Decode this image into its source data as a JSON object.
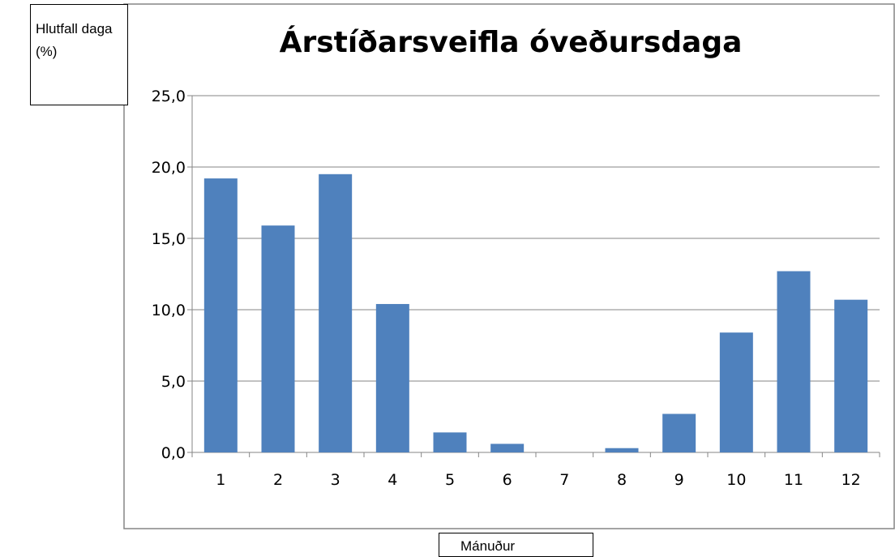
{
  "chart_data": {
    "type": "bar",
    "title": "Árstíðarsveifla óveðursdaga",
    "y_label": "Hlutfall daga (%)",
    "x_label": "Mánuður",
    "categories": [
      "1",
      "2",
      "3",
      "4",
      "5",
      "6",
      "7",
      "8",
      "9",
      "10",
      "11",
      "12"
    ],
    "values": [
      19.2,
      15.9,
      19.5,
      10.4,
      1.4,
      0.6,
      0,
      0.3,
      2.7,
      8.4,
      12.7,
      10.7
    ],
    "color": "#4f81bd",
    "ylim": [
      0,
      25
    ],
    "yticks": [
      {
        "value": 0,
        "label": "0,0"
      },
      {
        "value": 5,
        "label": "5,0"
      },
      {
        "value": 10,
        "label": "10,0"
      },
      {
        "value": 15,
        "label": "15,0"
      },
      {
        "value": 20,
        "label": "20,0"
      },
      {
        "value": 25,
        "label": "25,0"
      }
    ],
    "grid": true
  }
}
